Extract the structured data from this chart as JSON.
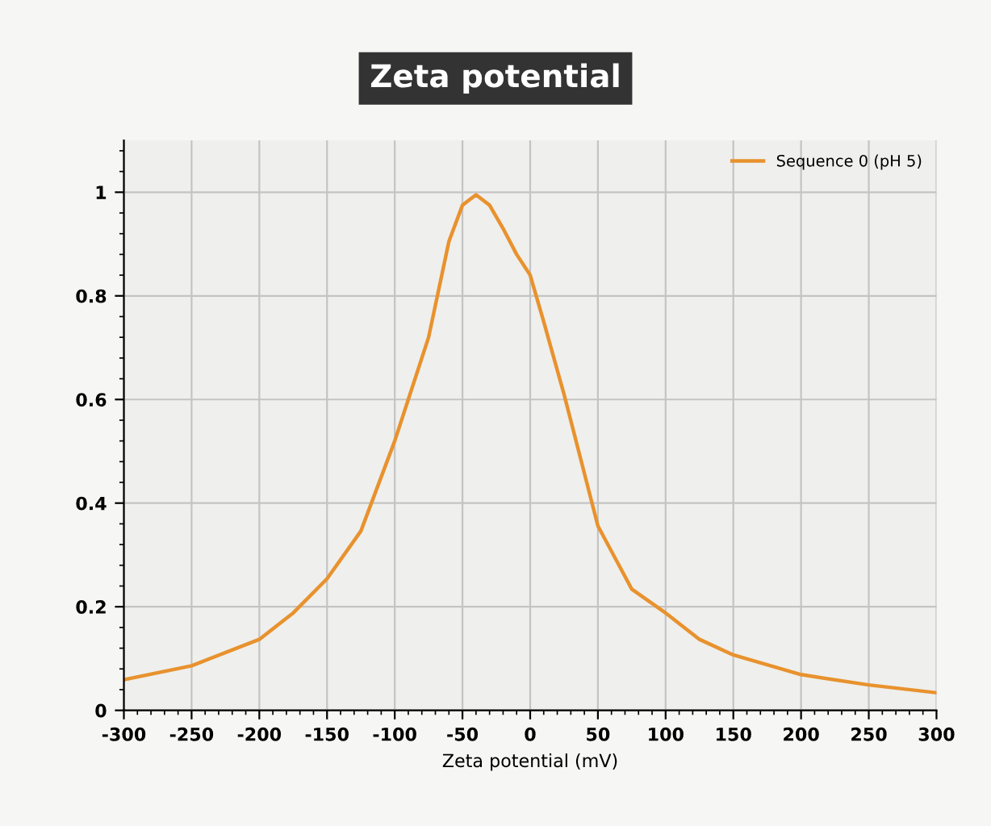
{
  "chart_data": {
    "type": "line",
    "title": "Zeta potential",
    "xlabel": "Zeta potential (mV)",
    "xlim": [
      -300,
      300
    ],
    "xticks": [
      -300,
      -250,
      -200,
      -150,
      -100,
      -50,
      0,
      50,
      100,
      150,
      200,
      250,
      300
    ],
    "ylim": [
      0,
      1.1
    ],
    "yticks": [
      0,
      0.2,
      0.4,
      0.6,
      0.8,
      1
    ],
    "grid": true,
    "legend": "top right",
    "marker": "none",
    "line_style": "solid",
    "series": [
      {
        "name": "Sequence 0 (pH 5)",
        "color": "#e8922e",
        "x": [
          -300,
          -250,
          -200,
          -175,
          -150,
          -125,
          -100,
          -90,
          -75,
          -60,
          -50,
          -40,
          -30,
          -20,
          -10,
          0,
          10,
          25,
          50,
          75,
          100,
          125,
          150,
          200,
          250,
          300
        ],
        "values": [
          0.059,
          0.086,
          0.137,
          0.188,
          0.254,
          0.346,
          0.52,
          0.6,
          0.72,
          0.905,
          0.975,
          0.995,
          0.975,
          0.93,
          0.88,
          0.84,
          0.75,
          0.61,
          0.356,
          0.234,
          0.188,
          0.137,
          0.107,
          0.069,
          0.049,
          0.034
        ]
      }
    ]
  }
}
